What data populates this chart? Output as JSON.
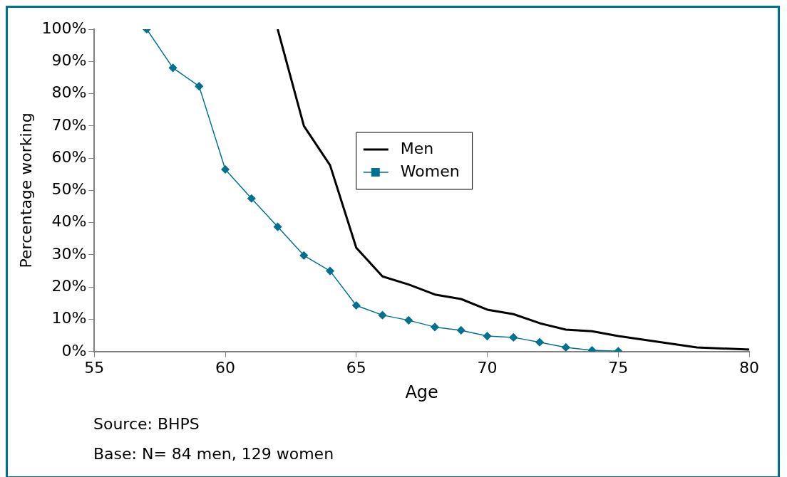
{
  "chart_data": {
    "type": "line",
    "xlabel": "Age",
    "ylabel": "Percentage working",
    "xlim": [
      55,
      80
    ],
    "xticks": [
      55,
      60,
      65,
      70,
      75,
      80
    ],
    "ylim": [
      0,
      100
    ],
    "yticks": [
      {
        "value": 0,
        "label": "0%"
      },
      {
        "value": 10,
        "label": "10%"
      },
      {
        "value": 20,
        "label": "20%"
      },
      {
        "value": 30,
        "label": "30%"
      },
      {
        "value": 40,
        "label": "40%"
      },
      {
        "value": 50,
        "label": "50%"
      },
      {
        "value": 60,
        "label": "60%"
      },
      {
        "value": 70,
        "label": "70%"
      },
      {
        "value": 80,
        "label": "80%"
      },
      {
        "value": 90,
        "label": "90%"
      },
      {
        "value": 100,
        "label": "100%"
      }
    ],
    "grid": false,
    "legend": "top",
    "line_style": "solid",
    "series": [
      {
        "name": "Men",
        "color": "#000000",
        "marker": "none",
        "x": [
          62,
          63,
          64,
          65,
          66,
          67,
          68,
          69,
          70,
          71,
          72,
          73,
          74,
          75,
          78,
          80
        ],
        "values": [
          100,
          70,
          57.8,
          32.2,
          23.3,
          20.8,
          17.7,
          16.3,
          13,
          11.6,
          8.8,
          6.8,
          6.3,
          4.8,
          1.3,
          0.6
        ]
      },
      {
        "name": "Women",
        "color": "#00728f",
        "marker": "diamond",
        "x": [
          57,
          58,
          59,
          60,
          61,
          62,
          63,
          64,
          65,
          66,
          67,
          68,
          69,
          70,
          71,
          72,
          73,
          74,
          75
        ],
        "values": [
          100,
          88,
          82.3,
          56.5,
          47.5,
          38.7,
          29.8,
          25,
          14.3,
          11.3,
          9.7,
          7.6,
          6.6,
          4.8,
          4.4,
          2.9,
          1.3,
          0.4,
          0.1
        ]
      }
    ],
    "annotations": [
      "Source: BHPS",
      "Base: N= 84 men, 129 women"
    ]
  }
}
